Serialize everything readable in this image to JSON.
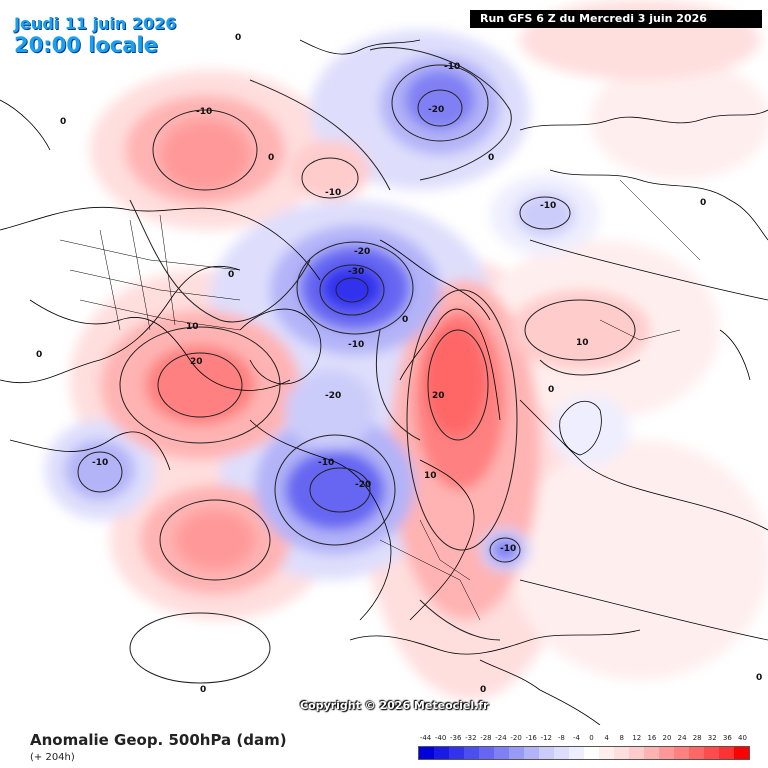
{
  "header": {
    "date": "Jeudi 11 juin 2026",
    "time": "20:00 locale",
    "run": "Run GFS 6 Z du Mercredi 3 juin 2026"
  },
  "copyright": "Copyright © 2026 Meteociel.fr",
  "footer": {
    "title": "Anomalie Geop. 500hPa (dam)",
    "subtitle": "(+ 204h)"
  },
  "scale": {
    "labels": [
      "-44",
      "-40",
      "-36",
      "-32",
      "-28",
      "-24",
      "-20",
      "-16",
      "-12",
      "-8",
      "-4",
      "0",
      "4",
      "8",
      "12",
      "16",
      "20",
      "24",
      "28",
      "32",
      "36",
      "40"
    ],
    "colors": [
      "#0000dd",
      "#1a1ae6",
      "#3333ee",
      "#4d4df0",
      "#6666f2",
      "#8080f4",
      "#9999f6",
      "#b3b3f8",
      "#ccccfa",
      "#dedefc",
      "#eeeefe",
      "#ffffff",
      "#ffeeee",
      "#ffdede",
      "#ffcccc",
      "#ffb3b3",
      "#ff9999",
      "#ff8080",
      "#ff6666",
      "#ff4d4d",
      "#ff3333",
      "#ff0000"
    ]
  },
  "contour_labels": {
    "a": "-10",
    "b": "-20",
    "c": "0",
    "d": "-10",
    "e": "-10",
    "f": "0",
    "g": "-10",
    "h": "0",
    "i": "-20",
    "j": "-30",
    "k": "0",
    "l": "-10",
    "m": "0",
    "n": "10",
    "o": "20",
    "p": "-20",
    "q": "-10",
    "r": "-20",
    "s": "20",
    "t": "10",
    "u": "10",
    "v": "-10",
    "w": "-10",
    "x": "0",
    "y": "0",
    "z": "0",
    "aa": "0",
    "ab": "0",
    "ac": "0",
    "ad": "0"
  }
}
